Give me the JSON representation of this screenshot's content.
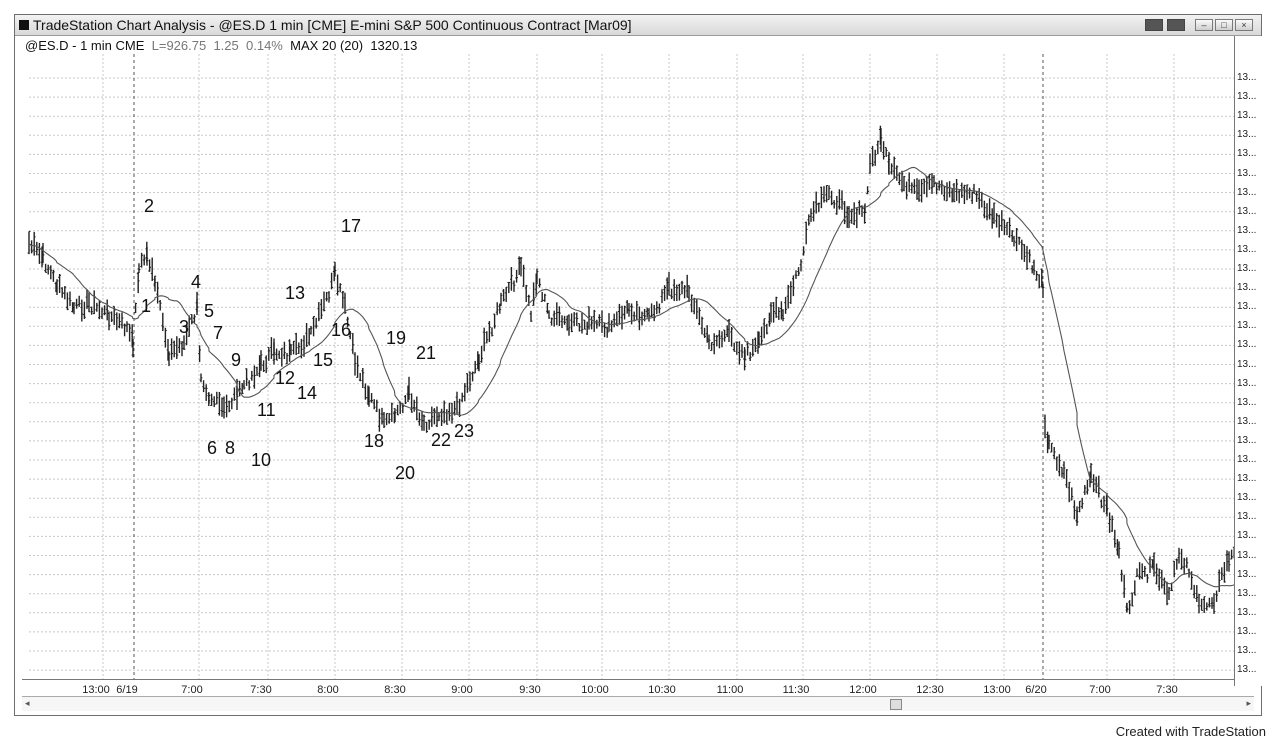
{
  "window": {
    "title": "TradeStation Chart Analysis - @ES.D 1 min [CME] E-mini S&P 500 Continuous Contract [Mar09]"
  },
  "info": {
    "symbol": "@ES.D - 1 min CME",
    "last": "L=926.75",
    "change": "1.25",
    "pct": "0.14%",
    "indicator": "MAX 20 (20)",
    "indicator_value": "1320.13"
  },
  "credit": "Created with TradeStation",
  "chart_data": {
    "type": "line",
    "chart_kind": "1-minute candlestick bars with 20-bar moving average",
    "x_tick_labels": [
      "13:00",
      "6/19",
      "7:00",
      "7:30",
      "8:00",
      "8:30",
      "9:00",
      "9:30",
      "10:00",
      "10:30",
      "11:00",
      "11:30",
      "12:00",
      "12:30",
      "13:00",
      "6/20",
      "7:00",
      "7:30"
    ],
    "y_tick_labels": [
      "13...",
      "13...",
      "13...",
      "13...",
      "13...",
      "13...",
      "13...",
      "13...",
      "13...",
      "13...",
      "13...",
      "13...",
      "13...",
      "13...",
      "13...",
      "13...",
      "13...",
      "13...",
      "13...",
      "13...",
      "13...",
      "13...",
      "13...",
      "13...",
      "13...",
      "13...",
      "13...",
      "13...",
      "13...",
      "13...",
      "13...",
      "13..."
    ],
    "grid": true,
    "annotations": [
      "1",
      "2",
      "3",
      "4",
      "5",
      "7",
      "6",
      "8",
      "9",
      "10",
      "11",
      "12",
      "13",
      "14",
      "15",
      "16",
      "17",
      "18",
      "19",
      "20",
      "21",
      "22",
      "23"
    ]
  }
}
